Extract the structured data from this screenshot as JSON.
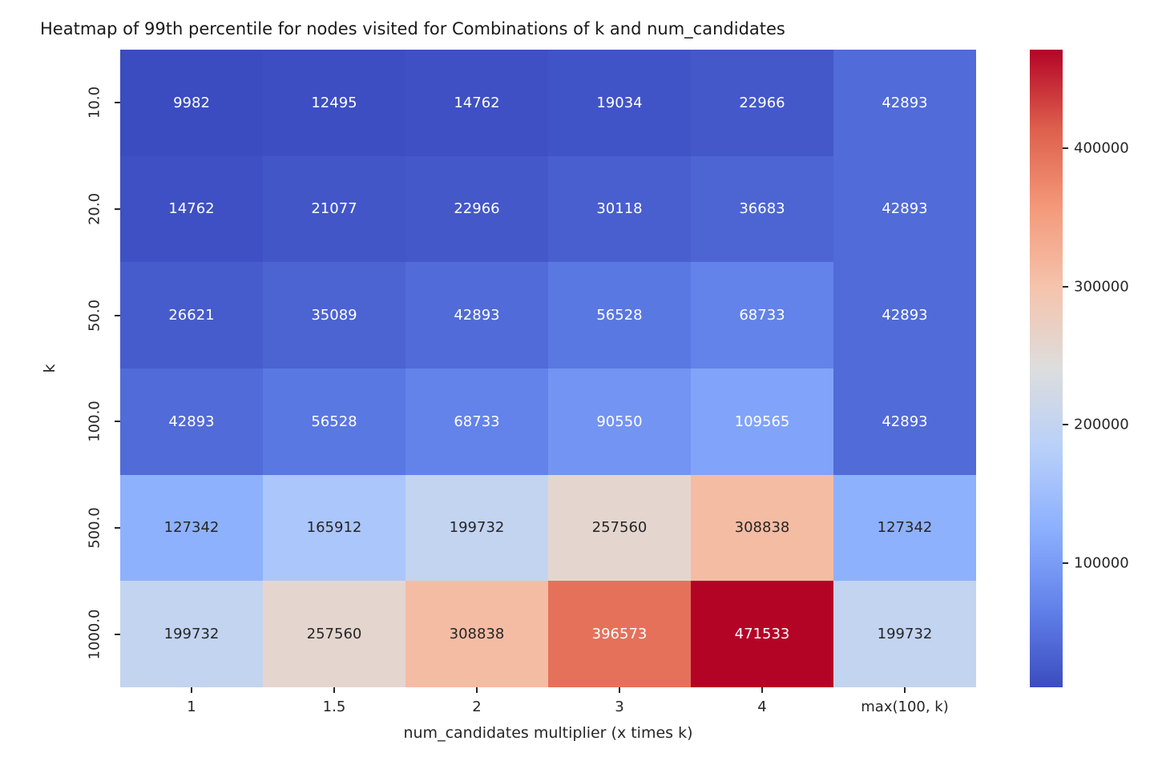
{
  "chart_data": {
    "type": "heatmap",
    "title": "Heatmap of 99th percentile for nodes visited for Combinations of k and num_candidates",
    "xlabel": "num_candidates multiplier (x times k)",
    "ylabel": "k",
    "x_categories": [
      "1",
      "1.5",
      "2",
      "3",
      "4",
      "max(100, k)"
    ],
    "y_categories": [
      "10.0",
      "20.0",
      "50.0",
      "100.0",
      "500.0",
      "1000.0"
    ],
    "values": [
      [
        9982,
        12495,
        14762,
        19034,
        22966,
        42893
      ],
      [
        14762,
        21077,
        22966,
        30118,
        36683,
        42893
      ],
      [
        26621,
        35089,
        42893,
        56528,
        68733,
        42893
      ],
      [
        42893,
        56528,
        68733,
        90550,
        109565,
        42893
      ],
      [
        127342,
        165912,
        199732,
        257560,
        308838,
        127342
      ],
      [
        199732,
        257560,
        308838,
        396573,
        471533,
        199732
      ]
    ],
    "vmin": 9982,
    "vmax": 471533,
    "colormap": {
      "name": "coolwarm",
      "stops": [
        "#3b4cc0",
        "#6282ea",
        "#8db0fe",
        "#b8d0f9",
        "#dddddd",
        "#f5c4ad",
        "#f49a7b",
        "#de604d",
        "#b40426"
      ]
    },
    "annotation_text_colors": {
      "on_dark": "#ffffff",
      "on_light": "#262626"
    },
    "colorbar": {
      "ticks": [
        100000,
        200000,
        300000,
        400000
      ],
      "tick_labels": [
        "100000",
        "200000",
        "300000",
        "400000"
      ]
    },
    "grid": false,
    "legend": "colorbar-right"
  }
}
